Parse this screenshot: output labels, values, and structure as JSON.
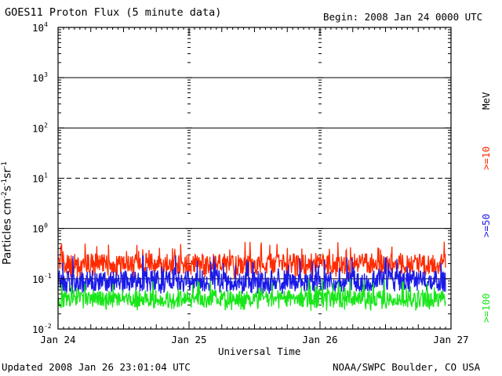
{
  "title": "GOES11 Proton Flux (5 minute data)",
  "begin": "Begin: 2008 Jan 24 0000 UTC",
  "updated": "Updated 2008 Jan 26 23:01:04 UTC",
  "credit": "NOAA/SWPC Boulder, CO USA",
  "chart_data": {
    "type": "line",
    "title": "GOES11 Proton Flux (5 minute data)",
    "xlabel": "Universal Time",
    "ylabel": "Particles cm-2s-1sr-1",
    "unit_label": "MeV",
    "y_scale": "log",
    "ylim": [
      0.01,
      10000
    ],
    "y_ticks": [
      {
        "base": "10",
        "exp": "-2"
      },
      {
        "base": "10",
        "exp": "-1"
      },
      {
        "base": "10",
        "exp": "0"
      },
      {
        "base": "10",
        "exp": "1"
      },
      {
        "base": "10",
        "exp": "2"
      },
      {
        "base": "10",
        "exp": "3"
      },
      {
        "base": "10",
        "exp": "4"
      }
    ],
    "x_ticks": [
      "Jan 24",
      "Jan 25",
      "Jan 26",
      "Jan 27"
    ],
    "xlim_days": [
      0,
      3
    ],
    "grid": "horizontal lines at each decade (dashed at 10^1)",
    "series": [
      {
        "name": ">=10",
        "color": "#ff2a00",
        "x_range": [
          "Jan 24",
          "Jan 26 23:00"
        ],
        "y_min": 0.1,
        "y_max": 0.55,
        "y_typical": 0.2
      },
      {
        "name": ">=50",
        "color": "#1a1ae8",
        "x_range": [
          "Jan 24",
          "Jan 26 23:00"
        ],
        "y_min": 0.05,
        "y_max": 0.3,
        "y_typical": 0.09
      },
      {
        "name": ">=100",
        "color": "#19e619",
        "x_range": [
          "Jan 24",
          "Jan 26 23:00"
        ],
        "y_min": 0.023,
        "y_max": 0.1,
        "y_typical": 0.04
      }
    ]
  }
}
